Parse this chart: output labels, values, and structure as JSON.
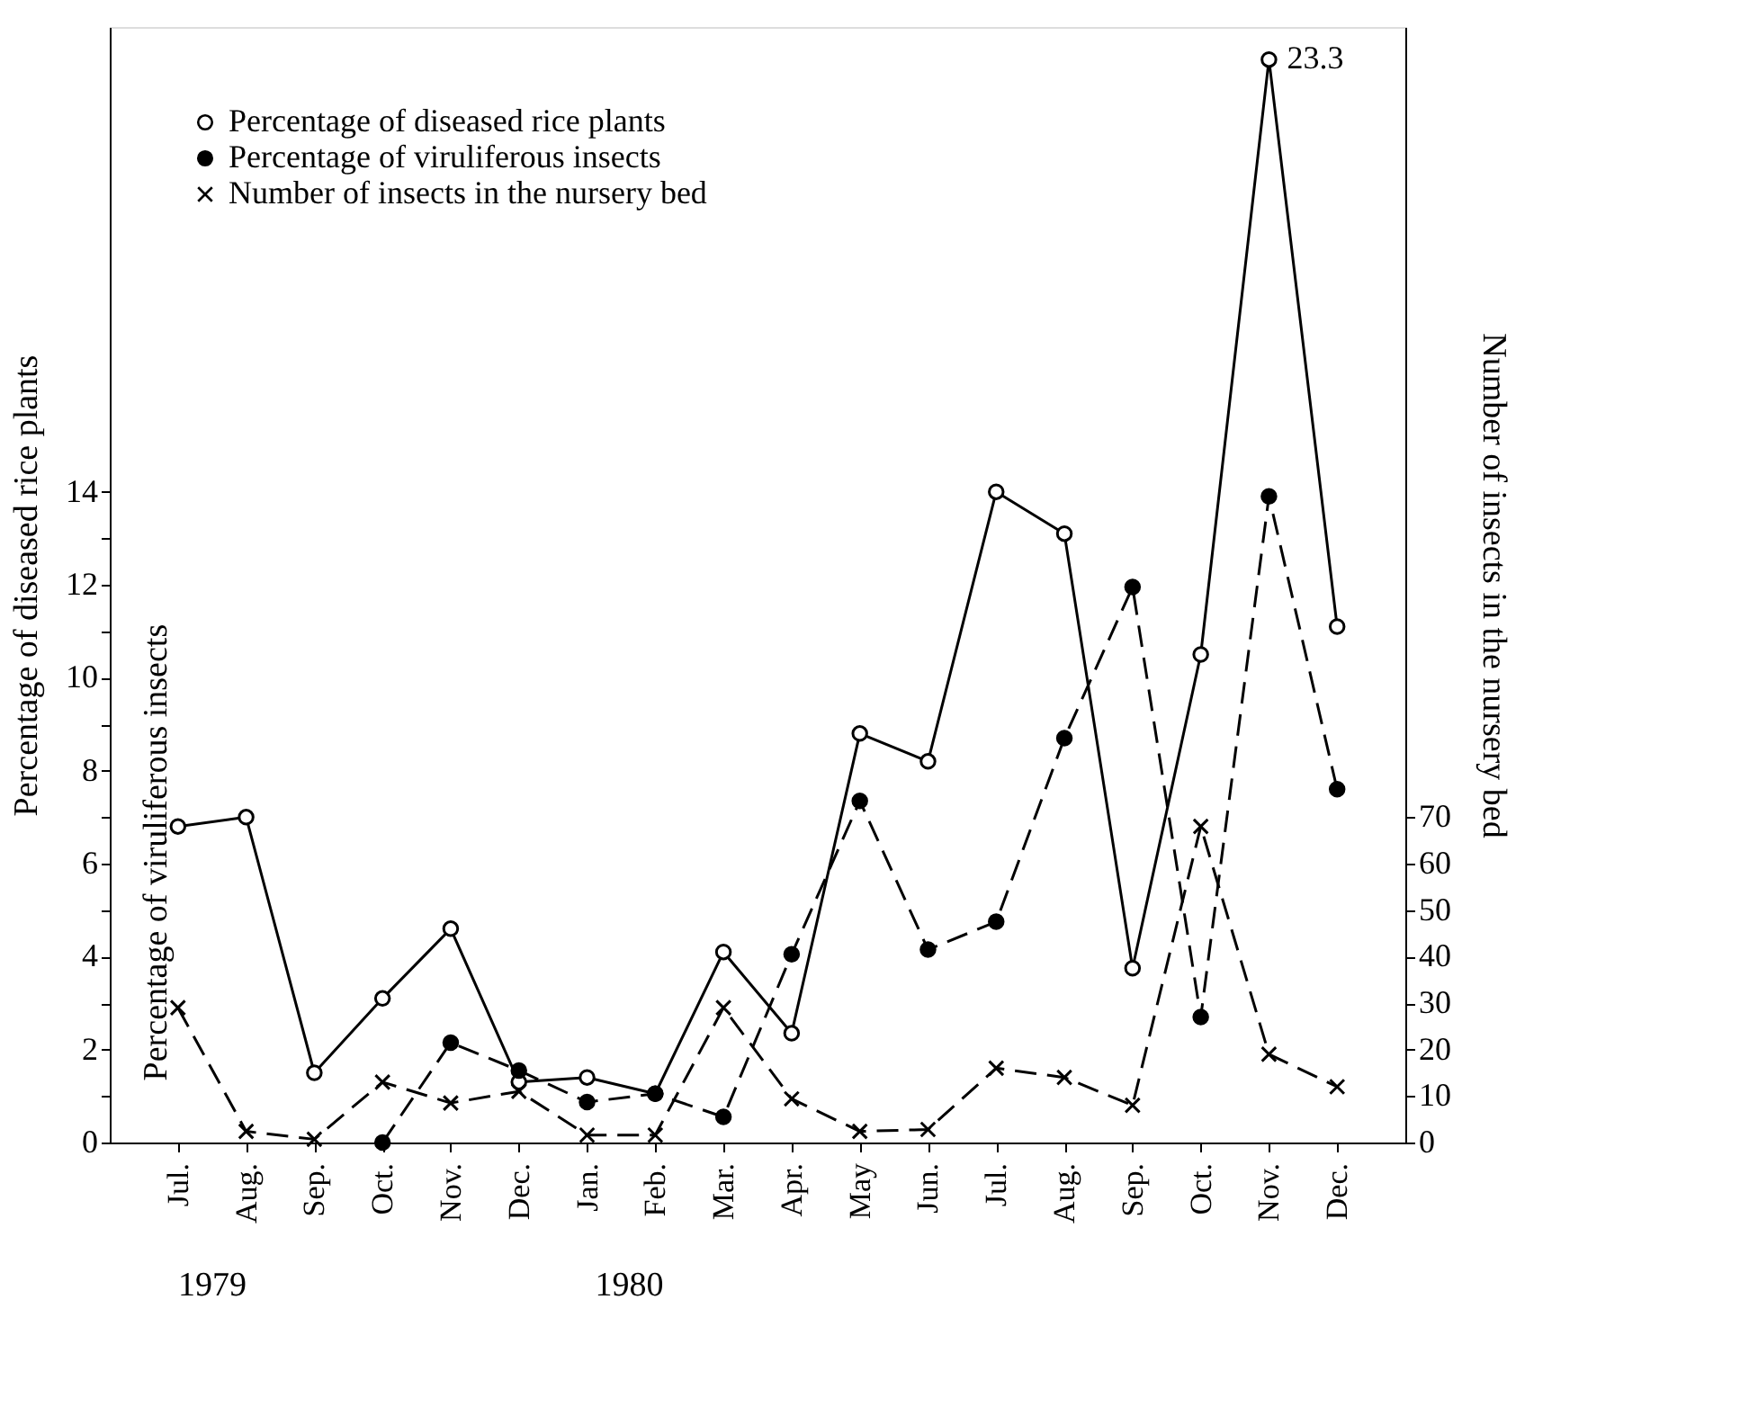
{
  "chart_data": {
    "type": "line",
    "categories": [
      "Jul.",
      "Aug.",
      "Sep.",
      "Oct.",
      "Nov.",
      "Dec.",
      "Jan.",
      "Feb.",
      "Mar.",
      "Apr.",
      "May",
      "Jun.",
      "Jul.",
      "Aug.",
      "Sep.",
      "Oct.",
      "Nov.",
      "Dec."
    ],
    "ylabel": "Percentage of  diseased rice plants",
    "y2label": "Number of insects in the nursery bed",
    "ylim": [
      0,
      24
    ],
    "yticks": [
      0,
      {
        "value": 1,
        "label": null
      },
      2,
      {
        "value": 3,
        "label": null
      },
      4,
      {
        "value": 5,
        "label": null
      },
      6,
      {
        "value": 7,
        "label": null
      },
      8,
      {
        "value": 9,
        "label": null
      },
      10,
      {
        "value": 11,
        "label": null
      },
      12,
      {
        "value": 13,
        "label": null
      },
      14
    ],
    "y2lim": [
      0,
      240
    ],
    "y2ticks": [
      0,
      10,
      20,
      30,
      40,
      50,
      60,
      70
    ],
    "legend": "top left",
    "grid": false,
    "annotations": [
      "Percentage of viruliferous insects",
      "1979",
      "1980"
    ],
    "series": [
      {
        "name": "Percentage of diseased rice plants",
        "color": "#000000",
        "marker": "circle",
        "line_style": "solid",
        "values": [
          6.8,
          7.0,
          1.5,
          3.1,
          4.6,
          1.3,
          1.4,
          1.05,
          4.1,
          2.35,
          8.8,
          8.2,
          14.0,
          13.1,
          3.75,
          10.5,
          23.3,
          11.1
        ],
        "value_labels": [
          null,
          null,
          null,
          null,
          null,
          null,
          null,
          null,
          null,
          null,
          null,
          null,
          null,
          null,
          null,
          null,
          "23.3",
          null
        ]
      },
      {
        "name": "Percentage of viruliferous insects",
        "color": "#000000",
        "marker": "circle",
        "line_style": "dashed",
        "values": [
          null,
          null,
          null,
          0,
          2.15,
          1.55,
          0.87,
          1.05,
          0.55,
          4.05,
          7.35,
          4.15,
          4.75,
          8.7,
          11.95,
          2.7,
          13.9,
          7.6
        ]
      },
      {
        "name": "Number of insects in the nursery bed",
        "color": "#000000",
        "marker": "cross",
        "line_style": "dashed",
        "axis": "y2",
        "values": [
          29,
          2.4,
          0.7,
          13,
          8.5,
          11,
          1.6,
          1.6,
          29,
          9.4,
          2.4,
          2.8,
          16,
          14,
          8,
          68,
          19,
          12
        ]
      }
    ]
  }
}
